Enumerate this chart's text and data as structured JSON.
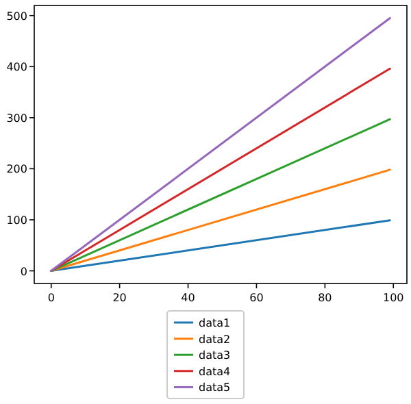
{
  "chart_data": {
    "type": "line",
    "x": [
      0,
      99
    ],
    "series": [
      {
        "name": "data1",
        "color": "#1f77b4",
        "values": [
          0,
          99
        ]
      },
      {
        "name": "data2",
        "color": "#ff7f0e",
        "values": [
          0,
          198
        ]
      },
      {
        "name": "data3",
        "color": "#2ca02c",
        "values": [
          0,
          297
        ]
      },
      {
        "name": "data4",
        "color": "#d62728",
        "values": [
          0,
          396
        ]
      },
      {
        "name": "data5",
        "color": "#9467bd",
        "values": [
          0,
          495
        ]
      }
    ],
    "xlim": [
      -4.95,
      103.95
    ],
    "xticks": [
      0,
      20,
      40,
      60,
      80,
      100
    ],
    "ylim": [
      -24.75,
      519.75
    ],
    "yticks": [
      0,
      100,
      200,
      300,
      400,
      500
    ],
    "grid": false,
    "legend": "bottom",
    "line_style": "solid"
  }
}
